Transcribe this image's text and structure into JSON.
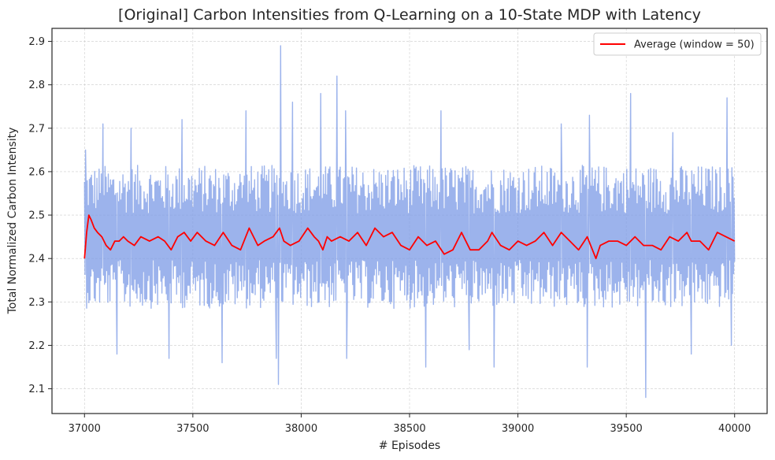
{
  "chart_data": {
    "type": "line",
    "title": "[Original] Carbon Intensities from Q-Learning on a 10-State MDP with Latency",
    "xlabel": "# Episodes",
    "ylabel": "Total Normalized Carbon Intensity",
    "xlim": [
      36850,
      40150
    ],
    "ylim": [
      2.043,
      2.93
    ],
    "xticks": [
      37000,
      37500,
      38000,
      38500,
      39000,
      39500,
      40000
    ],
    "xtick_labels": [
      "37000",
      "37500",
      "38000",
      "38500",
      "39000",
      "39500",
      "40000"
    ],
    "yticks": [
      2.1,
      2.2,
      2.3,
      2.4,
      2.5,
      2.6,
      2.7,
      2.8,
      2.9
    ],
    "ytick_labels": [
      "2.1",
      "2.2",
      "2.3",
      "2.4",
      "2.5",
      "2.6",
      "2.7",
      "2.8",
      "2.9"
    ],
    "grid": true,
    "legend": "top-right",
    "colors": {
      "raw": "#7b9ae6",
      "average": "#ff0000"
    },
    "raw_series": {
      "x_start": 37000,
      "x_end": 40000,
      "band_low": 2.3,
      "band_high": 2.6,
      "peaks": [
        {
          "x": 37005,
          "y": 2.65
        },
        {
          "x": 37085,
          "y": 2.71
        },
        {
          "x": 37215,
          "y": 2.7
        },
        {
          "x": 37450,
          "y": 2.72
        },
        {
          "x": 37745,
          "y": 2.74
        },
        {
          "x": 37905,
          "y": 2.89
        },
        {
          "x": 37960,
          "y": 2.76
        },
        {
          "x": 38090,
          "y": 2.78
        },
        {
          "x": 38165,
          "y": 2.82
        },
        {
          "x": 38205,
          "y": 2.74
        },
        {
          "x": 38645,
          "y": 2.74
        },
        {
          "x": 39200,
          "y": 2.71
        },
        {
          "x": 39330,
          "y": 2.73
        },
        {
          "x": 39520,
          "y": 2.78
        },
        {
          "x": 39715,
          "y": 2.69
        },
        {
          "x": 39965,
          "y": 2.77
        }
      ],
      "troughs": [
        {
          "x": 37150,
          "y": 2.18
        },
        {
          "x": 37390,
          "y": 2.17
        },
        {
          "x": 37635,
          "y": 2.16
        },
        {
          "x": 37885,
          "y": 2.17
        },
        {
          "x": 37895,
          "y": 2.11
        },
        {
          "x": 38210,
          "y": 2.17
        },
        {
          "x": 38575,
          "y": 2.15
        },
        {
          "x": 38775,
          "y": 2.19
        },
        {
          "x": 38890,
          "y": 2.15
        },
        {
          "x": 39320,
          "y": 2.15
        },
        {
          "x": 39590,
          "y": 2.08
        },
        {
          "x": 39800,
          "y": 2.18
        },
        {
          "x": 39985,
          "y": 2.2
        }
      ]
    },
    "series": [
      {
        "name": "Average (window = 50)",
        "x": [
          37000,
          37010,
          37020,
          37030,
          37045,
          37060,
          37080,
          37100,
          37120,
          37140,
          37160,
          37180,
          37200,
          37230,
          37260,
          37300,
          37340,
          37370,
          37400,
          37430,
          37460,
          37490,
          37520,
          37560,
          37600,
          37640,
          37680,
          37720,
          37760,
          37800,
          37830,
          37870,
          37900,
          37920,
          37950,
          37990,
          38030,
          38060,
          38080,
          38100,
          38120,
          38140,
          38180,
          38220,
          38260,
          38300,
          38340,
          38380,
          38420,
          38460,
          38500,
          38540,
          38580,
          38620,
          38660,
          38700,
          38740,
          38780,
          38820,
          38860,
          38880,
          38920,
          38960,
          39000,
          39040,
          39080,
          39120,
          39160,
          39200,
          39240,
          39280,
          39320,
          39360,
          39380,
          39420,
          39460,
          39500,
          39540,
          39580,
          39620,
          39660,
          39700,
          39740,
          39780,
          39800,
          39840,
          39880,
          39920,
          39960,
          40000
        ],
        "values": [
          2.4,
          2.46,
          2.5,
          2.49,
          2.47,
          2.46,
          2.45,
          2.43,
          2.42,
          2.44,
          2.44,
          2.45,
          2.44,
          2.43,
          2.45,
          2.44,
          2.45,
          2.44,
          2.42,
          2.45,
          2.46,
          2.44,
          2.46,
          2.44,
          2.43,
          2.46,
          2.43,
          2.42,
          2.47,
          2.43,
          2.44,
          2.45,
          2.47,
          2.44,
          2.43,
          2.44,
          2.47,
          2.45,
          2.44,
          2.42,
          2.45,
          2.44,
          2.45,
          2.44,
          2.46,
          2.43,
          2.47,
          2.45,
          2.46,
          2.43,
          2.42,
          2.45,
          2.43,
          2.44,
          2.41,
          2.42,
          2.46,
          2.42,
          2.42,
          2.44,
          2.46,
          2.43,
          2.42,
          2.44,
          2.43,
          2.44,
          2.46,
          2.43,
          2.46,
          2.44,
          2.42,
          2.45,
          2.4,
          2.43,
          2.44,
          2.44,
          2.43,
          2.45,
          2.43,
          2.43,
          2.42,
          2.45,
          2.44,
          2.46,
          2.44,
          2.44,
          2.42,
          2.46,
          2.45,
          2.44
        ]
      }
    ]
  }
}
